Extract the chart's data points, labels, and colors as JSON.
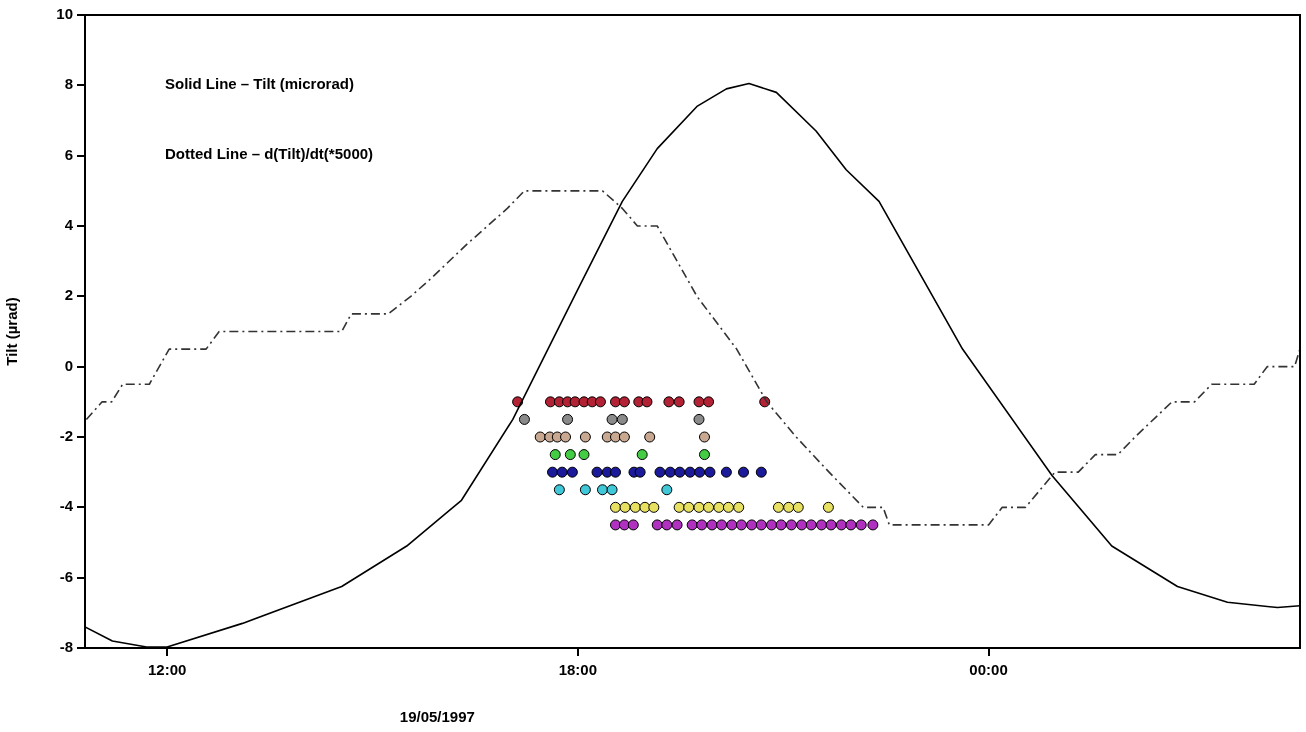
{
  "chart_data": {
    "type": "scatter",
    "xlabel": "19/05/1997",
    "ylabel": "Tilt (µrad)",
    "annotations": [
      "Solid Line – Tilt (microrad)",
      "Dotted Line – d(Tilt)/dt(*5000)"
    ],
    "xlim": [
      10.8,
      28.55
    ],
    "xticks": [
      {
        "value": 12,
        "label": "12:00"
      },
      {
        "value": 18,
        "label": "18:00"
      },
      {
        "value": 24,
        "label": "00:00"
      }
    ],
    "ylim": [
      -8,
      10
    ],
    "yticks": [
      -8,
      -6,
      -4,
      -2,
      0,
      2,
      4,
      6,
      8,
      10
    ],
    "grid": false,
    "legend": false,
    "series": [
      {
        "type": "line",
        "color": "#000000",
        "line_style": "solid",
        "marker": "none",
        "x": [
          10.8,
          11.2,
          11.7,
          12.0,
          13.1,
          14.55,
          15.5,
          16.3,
          17.05,
          18.0,
          18.65,
          19.16,
          19.74,
          20.17,
          20.5,
          20.9,
          21.48,
          21.92,
          22.4,
          23.62,
          24.93,
          25.8,
          26.76,
          27.49,
          28.22,
          28.55
        ],
        "values": [
          -7.4,
          -7.8,
          -7.97,
          -7.97,
          -7.3,
          -6.25,
          -5.1,
          -3.8,
          -1.5,
          2.2,
          4.7,
          6.2,
          7.4,
          7.9,
          8.05,
          7.8,
          6.7,
          5.6,
          4.7,
          0.5,
          -3.1,
          -5.1,
          -6.25,
          -6.7,
          -6.85,
          -6.8
        ]
      },
      {
        "type": "line",
        "color": "#333333",
        "line_style": "dashed",
        "marker": "none",
        "x": [
          10.82,
          11.05,
          11.19,
          11.35,
          11.74,
          12.03,
          12.57,
          12.76,
          14.55,
          14.69,
          15.23,
          15.56,
          15.85,
          16.39,
          16.68,
          16.97,
          17.22,
          18.36,
          18.65,
          18.87,
          19.16,
          19.74,
          20.32,
          20.76,
          21.19,
          21.67,
          22.17,
          22.46,
          22.55,
          24.0,
          24.2,
          24.54,
          24.97,
          25.31,
          25.56,
          25.89,
          26.14,
          26.68,
          27.01,
          27.26,
          27.88,
          28.07,
          28.47,
          28.55
        ],
        "values": [
          -1.5,
          -1,
          -1,
          -0.5,
          -0.5,
          0.5,
          0.5,
          1,
          1,
          1.5,
          1.5,
          2,
          2.5,
          3.5,
          4,
          4.5,
          5,
          5,
          4.5,
          4,
          4,
          2,
          0.5,
          -1,
          -2,
          -3,
          -4,
          -4,
          -4.5,
          -4.5,
          -4,
          -4,
          -3,
          -3,
          -2.5,
          -2.5,
          -2,
          -1,
          -1,
          -0.5,
          -0.5,
          0,
          0,
          0.5
        ]
      },
      {
        "color": "#b22234",
        "marker": "circle",
        "x": [
          17.12,
          17.6,
          17.73,
          17.85,
          17.96,
          18.09,
          18.21,
          18.33,
          18.55,
          18.68,
          18.89,
          19.01,
          19.33,
          19.48,
          19.77,
          19.91,
          20.73
        ],
        "values": [
          -1,
          -1,
          -1,
          -1,
          -1,
          -1,
          -1,
          -1,
          -1,
          -1,
          -1,
          -1,
          -1,
          -1,
          -1,
          -1,
          -1
        ]
      },
      {
        "color": "#8a8a8a",
        "marker": "circle",
        "x": [
          17.22,
          17.85,
          18.5,
          18.65,
          19.77
        ],
        "values": [
          -1.5,
          -1.5,
          -1.5,
          -1.5,
          -1.5
        ]
      },
      {
        "color": "#c8a890",
        "marker": "circle",
        "x": [
          17.45,
          17.59,
          17.7,
          17.82,
          18.11,
          18.43,
          18.55,
          18.68,
          19.05,
          19.85
        ],
        "values": [
          -2,
          -2,
          -2,
          -2,
          -2,
          -2,
          -2,
          -2,
          -2,
          -2
        ]
      },
      {
        "color": "#44cc44",
        "marker": "circle",
        "x": [
          17.67,
          17.89,
          18.09,
          18.94,
          19.85
        ],
        "values": [
          -2.5,
          -2.5,
          -2.5,
          -2.5,
          -2.5
        ]
      },
      {
        "color": "#1a1a9a",
        "marker": "circle",
        "x": [
          17.63,
          17.77,
          17.92,
          18.28,
          18.43,
          18.55,
          18.82,
          18.91,
          19.2,
          19.35,
          19.49,
          19.64,
          19.78,
          19.93,
          20.17,
          20.42,
          20.68
        ],
        "values": [
          -3,
          -3,
          -3,
          -3,
          -3,
          -3,
          -3,
          -3,
          -3,
          -3,
          -3,
          -3,
          -3,
          -3,
          -3,
          -3,
          -3
        ]
      },
      {
        "color": "#40c8d8",
        "marker": "circle",
        "x": [
          17.73,
          18.11,
          18.36,
          18.5,
          19.3
        ],
        "values": [
          -3.5,
          -3.5,
          -3.5,
          -3.5,
          -3.5
        ]
      },
      {
        "color": "#e8e060",
        "marker": "circle",
        "x": [
          18.55,
          18.69,
          18.84,
          18.98,
          19.11,
          19.48,
          19.62,
          19.77,
          19.91,
          20.06,
          20.2,
          20.35,
          20.93,
          21.08,
          21.22,
          21.66
        ],
        "values": [
          -4,
          -4,
          -4,
          -4,
          -4,
          -4,
          -4,
          -4,
          -4,
          -4,
          -4,
          -4,
          -4,
          -4,
          -4,
          -4
        ]
      },
      {
        "color": "#b030c0",
        "marker": "circle",
        "x": [
          18.55,
          18.68,
          18.81,
          19.16,
          19.3,
          19.45,
          19.67,
          19.81,
          19.96,
          20.1,
          20.25,
          20.39,
          20.54,
          20.68,
          20.83,
          20.97,
          21.12,
          21.27,
          21.41,
          21.56,
          21.7,
          21.85,
          21.99,
          22.14,
          22.31
        ],
        "values": [
          -4.5,
          -4.5,
          -4.5,
          -4.5,
          -4.5,
          -4.5,
          -4.5,
          -4.5,
          -4.5,
          -4.5,
          -4.5,
          -4.5,
          -4.5,
          -4.5,
          -4.5,
          -4.5,
          -4.5,
          -4.5,
          -4.5,
          -4.5,
          -4.5,
          -4.5,
          -4.5,
          -4.5,
          -4.5
        ]
      }
    ]
  }
}
